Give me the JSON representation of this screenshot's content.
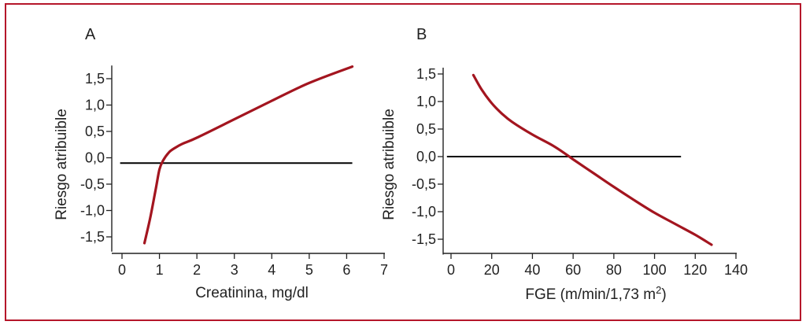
{
  "colors": {
    "frame": "#b5162a",
    "curve": "#a3151f",
    "axis": "#222222",
    "reference_line": "#000000"
  },
  "chart_data": [
    {
      "panel": "A",
      "type": "line",
      "xlabel": "Creatinina, mg/dl",
      "ylabel": "Riesgo atribuible",
      "xlim": [
        0,
        7
      ],
      "ylim": [
        -1.75,
        1.75
      ],
      "xticks": [
        0,
        1,
        2,
        3,
        4,
        5,
        6,
        7
      ],
      "xtick_labels": [
        "0",
        "1",
        "2",
        "3",
        "4",
        "5",
        "6",
        "7"
      ],
      "yticks": [
        -1.5,
        -1.0,
        -0.5,
        0.0,
        0.5,
        1.0,
        1.5
      ],
      "ytick_labels": [
        "-1,5",
        "-1,0",
        "-0,5",
        "0,0",
        "0,5",
        "1,0",
        "1,5"
      ],
      "reference_line": {
        "y": -0.1,
        "x_from": -0.05,
        "x_to": 6.15
      },
      "series": [
        {
          "x": [
            0.6,
            0.75,
            0.9,
            1.0,
            1.1,
            1.25,
            1.4,
            1.6,
            2.0,
            3.0,
            4.0,
            5.0,
            6.15
          ],
          "y": [
            -1.62,
            -1.15,
            -0.6,
            -0.22,
            -0.05,
            0.1,
            0.18,
            0.26,
            0.38,
            0.73,
            1.08,
            1.42,
            1.73
          ]
        }
      ],
      "grid": false
    },
    {
      "panel": "B",
      "type": "line",
      "xlabel": "FGE (m/min/1,73 m",
      "xlabel_sup": "2",
      "xlabel_suffix": ")",
      "ylabel": "Riesgo atribuible",
      "xlim": [
        0,
        140
      ],
      "ylim": [
        -1.75,
        1.6
      ],
      "xticks": [
        0,
        20,
        40,
        60,
        80,
        100,
        120,
        140
      ],
      "xtick_labels": [
        "0",
        "20",
        "40",
        "60",
        "80",
        "100",
        "120",
        "140"
      ],
      "yticks": [
        -1.5,
        -1.0,
        -0.5,
        0.0,
        0.5,
        1.0,
        1.5
      ],
      "ytick_labels": [
        "-1,5",
        "-1,0",
        "-0,5",
        "0,0",
        "0,5",
        "1,0",
        "1,5"
      ],
      "reference_line": {
        "y": 0.0,
        "x_from": -2,
        "x_to": 113
      },
      "series": [
        {
          "x": [
            11,
            15,
            20,
            25,
            30,
            40,
            50,
            57,
            60,
            70,
            80,
            90,
            100,
            110,
            120,
            128
          ],
          "y": [
            1.48,
            1.22,
            0.97,
            0.78,
            0.63,
            0.4,
            0.2,
            0.03,
            -0.05,
            -0.3,
            -0.55,
            -0.79,
            -1.02,
            -1.22,
            -1.42,
            -1.6
          ]
        }
      ],
      "grid": false
    }
  ]
}
